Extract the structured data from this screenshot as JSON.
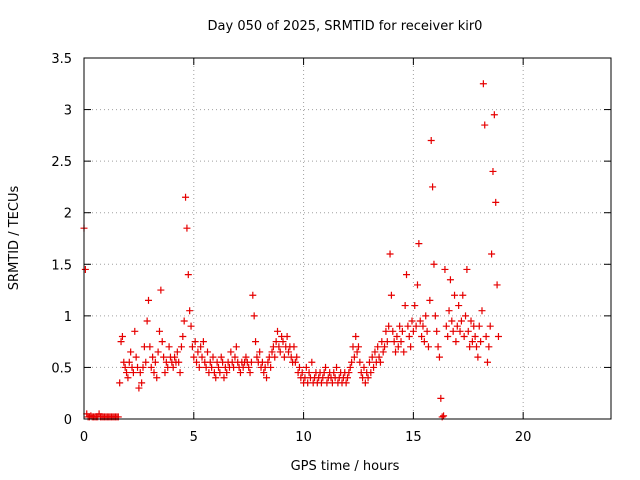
{
  "chart_data": {
    "type": "scatter",
    "title": "Day 050 of 2025, SRMTID for receiver kir0",
    "xlabel": "GPS time / hours",
    "ylabel": "SRMTID / TECUs",
    "xlim": [
      0,
      24
    ],
    "ylim": [
      0,
      3.5
    ],
    "xticks": [
      0,
      5,
      10,
      15,
      20
    ],
    "yticks": [
      0,
      0.5,
      1,
      1.5,
      2,
      2.5,
      3,
      3.5
    ],
    "xtick_labels": [
      "0",
      "5",
      "10",
      "15",
      "20"
    ],
    "ytick_labels": [
      "0",
      "0.5",
      "1",
      "1.5",
      "2",
      "2.5",
      "3",
      "3.5"
    ],
    "grid": true,
    "marker": "+",
    "color": "#e60000",
    "series": [
      {
        "name": "kir0",
        "x_start": 0.0,
        "x_step": 0.0625,
        "values": [
          1.85,
          1.45,
          0.05,
          0.02,
          0.02,
          0.03,
          0.02,
          0.02,
          0.02,
          0.02,
          0.02,
          0.05,
          0.02,
          0.02,
          0.02,
          0.02,
          0.02,
          0.02,
          0.02,
          0.02,
          0.02,
          0.02,
          0.02,
          0.02,
          0.02,
          0.02,
          0.35,
          0.75,
          0.8,
          0.55,
          0.5,
          0.45,
          0.4,
          0.55,
          0.65,
          0.5,
          0.45,
          0.85,
          0.6,
          0.5,
          0.3,
          0.45,
          0.35,
          0.5,
          0.7,
          0.55,
          0.95,
          1.15,
          0.7,
          0.5,
          0.6,
          0.45,
          0.55,
          0.4,
          0.65,
          0.85,
          1.25,
          0.75,
          0.6,
          0.45,
          0.55,
          0.5,
          0.7,
          0.6,
          0.55,
          0.5,
          0.6,
          0.55,
          0.65,
          0.55,
          0.45,
          0.7,
          0.8,
          0.95,
          2.15,
          1.85,
          1.4,
          1.05,
          0.9,
          0.7,
          0.6,
          0.75,
          0.55,
          0.65,
          0.5,
          0.7,
          0.6,
          0.75,
          0.55,
          0.5,
          0.65,
          0.45,
          0.55,
          0.5,
          0.6,
          0.45,
          0.4,
          0.55,
          0.5,
          0.45,
          0.6,
          0.55,
          0.4,
          0.5,
          0.45,
          0.55,
          0.5,
          0.65,
          0.55,
          0.5,
          0.6,
          0.7,
          0.55,
          0.5,
          0.45,
          0.55,
          0.5,
          0.55,
          0.6,
          0.55,
          0.5,
          0.45,
          0.55,
          1.2,
          1.0,
          0.75,
          0.6,
          0.55,
          0.65,
          0.5,
          0.55,
          0.45,
          0.5,
          0.4,
          0.55,
          0.6,
          0.5,
          0.65,
          0.7,
          0.6,
          0.75,
          0.85,
          0.7,
          0.65,
          0.8,
          0.75,
          0.6,
          0.7,
          0.8,
          0.65,
          0.7,
          0.6,
          0.55,
          0.7,
          0.55,
          0.6,
          0.45,
          0.5,
          0.4,
          0.45,
          0.35,
          0.4,
          0.5,
          0.35,
          0.45,
          0.4,
          0.55,
          0.35,
          0.4,
          0.45,
          0.35,
          0.4,
          0.45,
          0.35,
          0.4,
          0.45,
          0.5,
          0.35,
          0.4,
          0.45,
          0.4,
          0.35,
          0.45,
          0.4,
          0.5,
          0.35,
          0.4,
          0.45,
          0.35,
          0.4,
          0.45,
          0.35,
          0.4,
          0.45,
          0.5,
          0.55,
          0.7,
          0.6,
          0.8,
          0.65,
          0.7,
          0.55,
          0.45,
          0.4,
          0.5,
          0.35,
          0.45,
          0.4,
          0.55,
          0.45,
          0.6,
          0.5,
          0.65,
          0.55,
          0.7,
          0.6,
          0.55,
          0.75,
          0.65,
          0.7,
          0.85,
          0.75,
          0.9,
          1.6,
          1.2,
          0.85,
          0.75,
          0.65,
          0.8,
          0.7,
          0.9,
          0.75,
          0.85,
          0.65,
          1.1,
          1.4,
          0.9,
          0.8,
          0.7,
          0.95,
          0.85,
          1.1,
          0.9,
          1.3,
          1.7,
          0.95,
          0.8,
          0.9,
          0.75,
          1.0,
          0.85,
          0.7,
          1.15,
          2.7,
          2.25,
          1.5,
          1.0,
          0.85,
          0.7,
          0.6,
          0.2,
          0.02,
          0.03,
          1.45,
          0.9,
          0.8,
          1.05,
          1.35,
          0.95,
          0.85,
          1.2,
          0.75,
          0.9,
          1.1,
          0.85,
          0.95,
          1.2,
          0.8,
          1.0,
          1.45,
          0.85,
          0.7,
          0.95,
          0.75,
          0.9,
          0.8,
          0.7,
          0.6,
          0.9,
          0.75,
          1.05,
          3.25,
          2.85,
          0.8,
          0.55,
          0.7,
          0.9,
          1.6,
          2.4,
          2.95,
          2.1,
          1.3,
          0.8
        ]
      }
    ]
  }
}
